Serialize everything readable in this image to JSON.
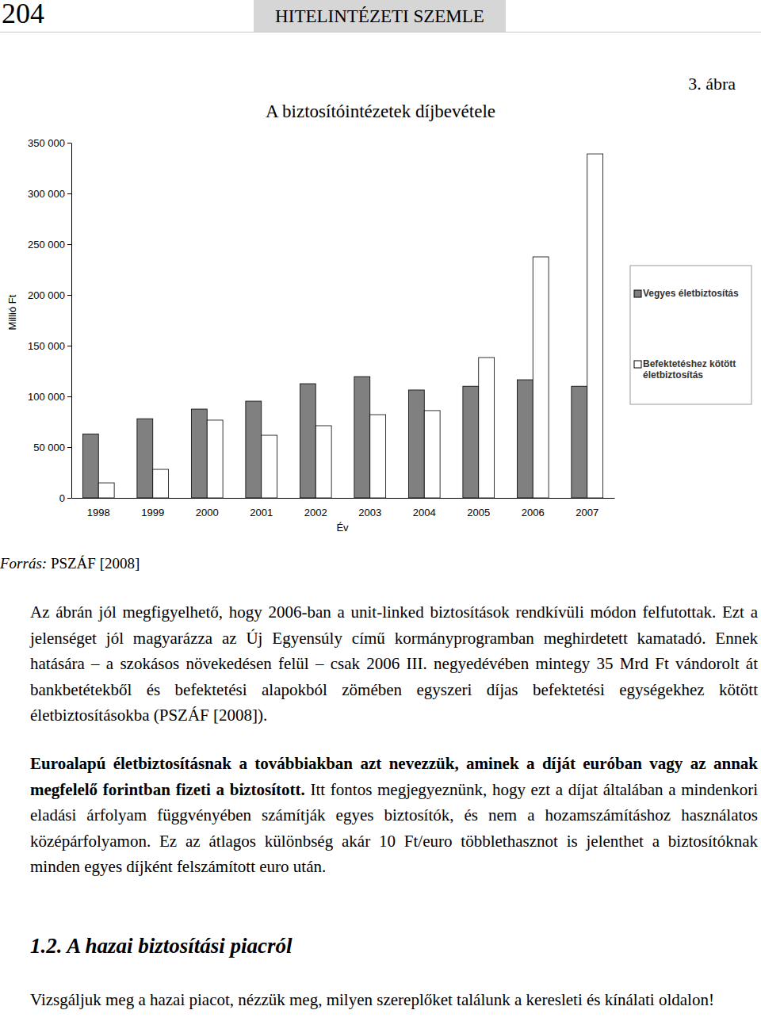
{
  "header": {
    "page_number": "204",
    "journal": "HITELINTÉZETI SZEMLE"
  },
  "figure_label": "3. ábra",
  "chart_data": {
    "type": "bar",
    "title": "A biztosítóintézetek díjbevétele",
    "x_label": "Év",
    "y_label": "Millió Ft",
    "categories": [
      "1998",
      "1999",
      "2000",
      "2001",
      "2002",
      "2003",
      "2004",
      "2005",
      "2006",
      "2007"
    ],
    "series": [
      {
        "name": "Vegyes életbiztosítás",
        "color": "#808080",
        "values": [
          63000,
          78000,
          87500,
          95300,
          112500,
          119500,
          106300,
          110000,
          116400,
          110000
        ]
      },
      {
        "name": "Befektetéshez kötött életbiztosítás",
        "color": "#ffffff",
        "values": [
          14800,
          28100,
          76600,
          61700,
          71100,
          82000,
          86000,
          138300,
          237500,
          339000
        ]
      }
    ],
    "ylim": [
      0,
      350000
    ],
    "yticks": [
      0,
      {
        "value": 50000,
        "label": "50 000"
      },
      {
        "value": 100000,
        "label": "100 000"
      },
      {
        "value": 150000,
        "label": "150 000"
      },
      {
        "value": 200000,
        "label": "200 000"
      },
      {
        "value": 250000,
        "label": "250 000"
      },
      {
        "value": 300000,
        "label": "300 000"
      },
      {
        "value": 350000,
        "label": "350 000"
      }
    ],
    "grid": false,
    "legend": "right"
  },
  "source": {
    "label": "Forrás:",
    "text": "PSZÁF [2008]"
  },
  "paragraph_1": "Az ábrán jól megfigyelhető, hogy 2006-ban a unit-linked biztosítások rendkívüli módon felfutottak. Ezt a jelenséget jól magyarázza az Új Egyensúly című kormányprogramban meghirdetett kamatadó. Ennek hatására – a szokásos növekedésen felül – csak 2006 III. negyedévében mintegy 35 Mrd Ft vándorolt át bankbetétekből és befektetési alapokból zömében egyszeri díjas befektetési egységekhez kötött életbiztosításokba (PSZÁF [2008]).",
  "paragraph_2": {
    "lead": "Euroalapú életbiztosításnak a továbbiakban azt nevezzük, aminek a díját euróban vagy az annak megfelelő forintban fizeti a biztosított.",
    "body": "Itt fontos megjegyeznünk, hogy ezt a díjat általában a mindenkori eladási árfolyam függvényében számítják egyes biztosítók, és nem a hozamszámításhoz használatos középárfolyamon. Ez az átlagos különbség akár 10 Ft/euro többlethasznot is jelenthet a biztosítóknak minden egyes díjként felszámított euro után."
  },
  "heading": "1.2. A hazai biztosítási piacról",
  "paragraph_3": "Vizsgáljuk meg a hazai piacot, nézzük meg, milyen szereplőket találunk a keresleti és kínálati oldalon!"
}
